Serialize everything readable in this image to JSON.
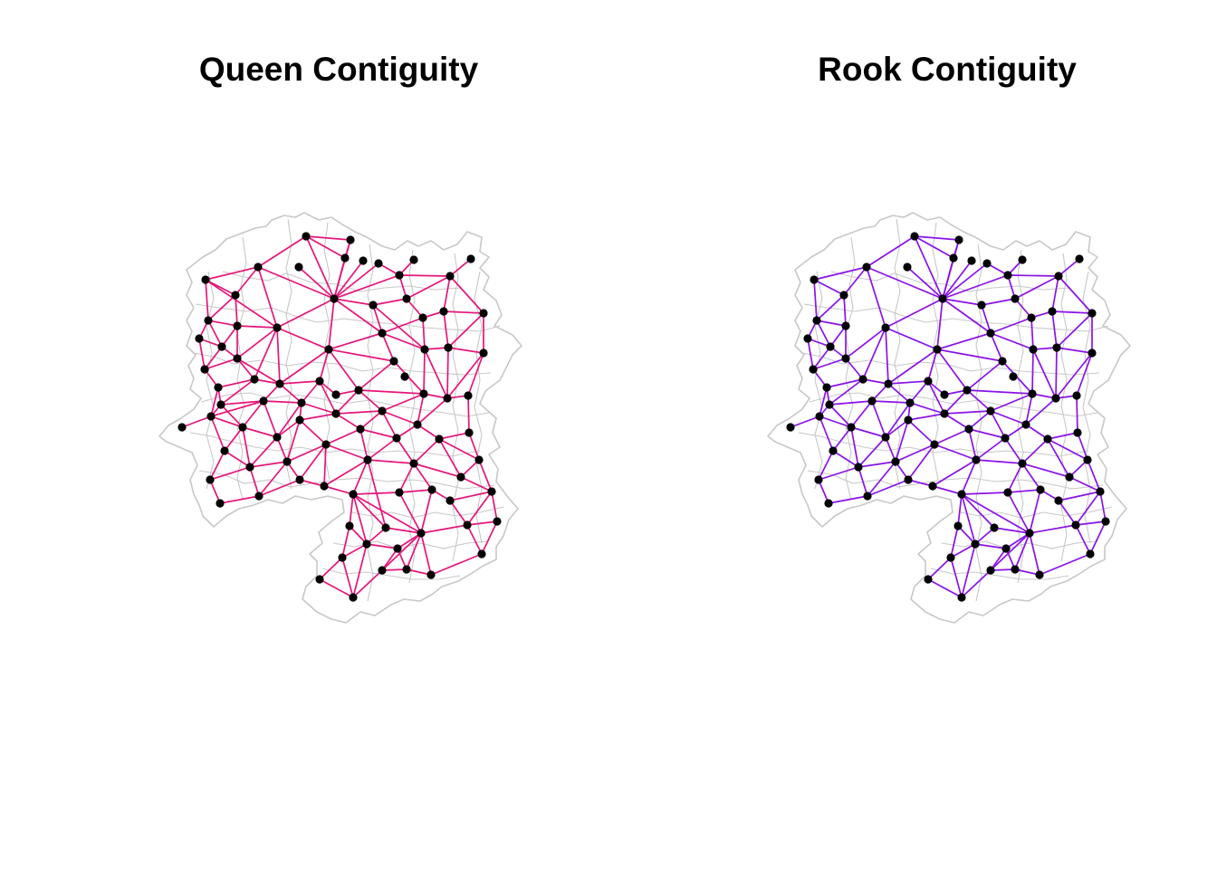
{
  "panels": [
    {
      "title": "Queen Contiguity",
      "edge_color": "#e6157a"
    },
    {
      "title": "Rook Contiguity",
      "edge_color": "#8a12e8"
    }
  ],
  "node_color": "#000000",
  "boundary_color": "#c8c8c8"
}
